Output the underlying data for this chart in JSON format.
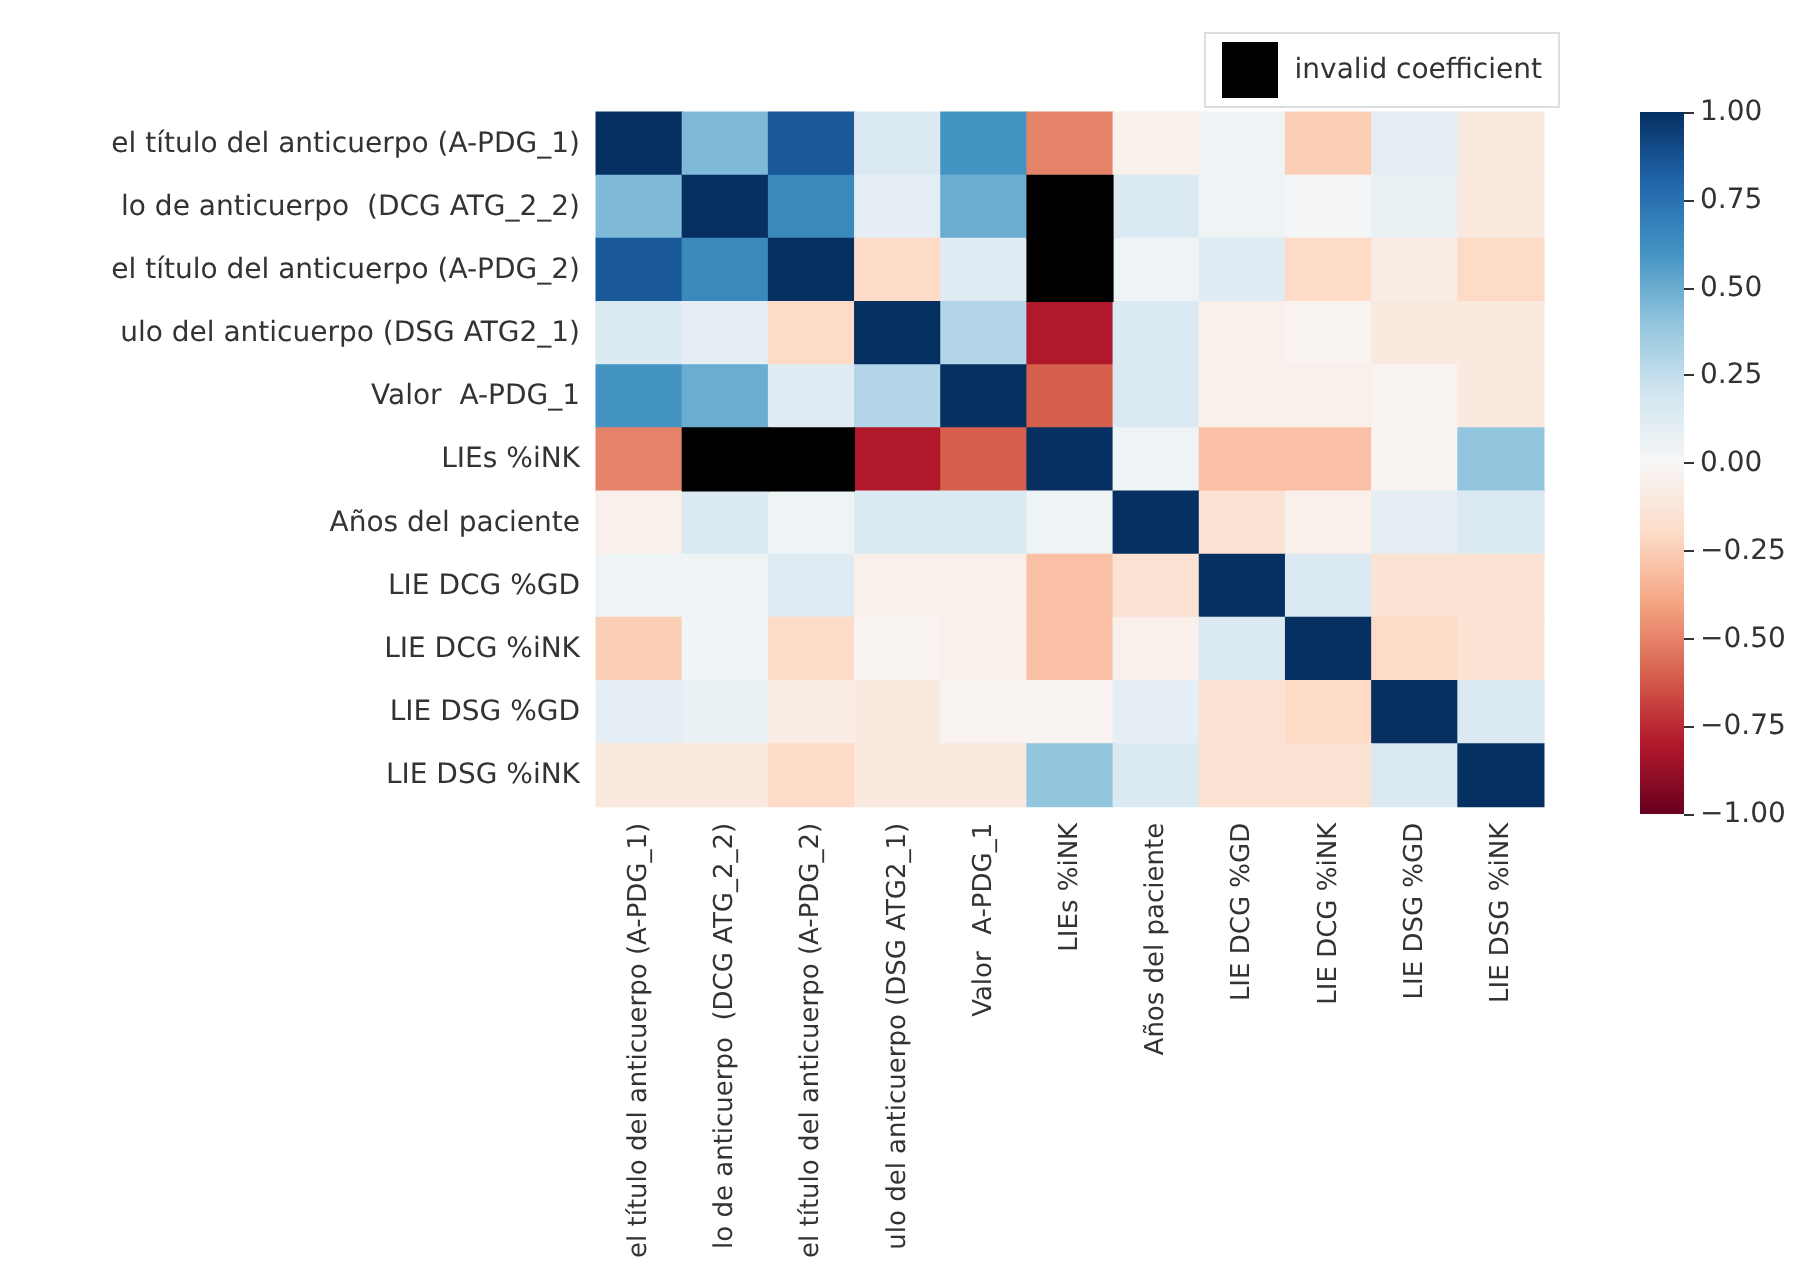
{
  "chart_data": {
    "type": "heatmap",
    "categories": [
      "el título del anticuerpo (A-PDG_1)",
      "lo de anticuerpo  (DCG ATG_2_2)",
      "el título del anticuerpo (A-PDG_2)",
      "ulo del anticuerpo (DSG ATG2_1)",
      "Valor  A-PDG_1",
      "LIEs %iNK",
      "Años del paciente",
      "LIE DCG %GD",
      "LIE DCG %iNK",
      "LIE DSG %GD",
      "LIE DSG %iNK"
    ],
    "y_categories": [
      "el título del anticuerpo (A-PDG_1)",
      "lo de anticuerpo  (DCG ATG_2_2)",
      "el título del anticuerpo (A-PDG_2)",
      "ulo del anticuerpo (DSG ATG2_1)",
      "Valor  A-PDG_1",
      "LIEs %iNK",
      "Años del paciente",
      "LIE DCG %GD",
      "LIE DCG %iNK",
      "LIE DSG %GD",
      "LIE DSG %iNK"
    ],
    "cells": [
      [
        1,
        0.45,
        0.85,
        0.15,
        0.6,
        -0.5,
        -0.05,
        0.05,
        -0.25,
        0.1,
        -0.1
      ],
      [
        0.45,
        1,
        0.65,
        0.1,
        0.5,
        null,
        0.15,
        0.05,
        0.02,
        0.07,
        -0.1
      ],
      [
        0.85,
        0.65,
        1,
        -0.2,
        0.12,
        null,
        0.05,
        0.12,
        -0.2,
        -0.08,
        -0.2
      ],
      [
        0.15,
        0.1,
        -0.2,
        1,
        0.3,
        -0.8,
        0.15,
        -0.05,
        -0.03,
        -0.1,
        -0.1
      ],
      [
        0.6,
        0.5,
        0.12,
        0.3,
        1,
        -0.6,
        0.15,
        -0.05,
        -0.05,
        -0.03,
        -0.1
      ],
      [
        -0.5,
        null,
        null,
        -0.8,
        -0.6,
        1,
        0.05,
        -0.3,
        -0.3,
        -0.03,
        0.4
      ],
      [
        -0.05,
        0.15,
        0.05,
        0.15,
        0.15,
        0.05,
        1,
        -0.15,
        -0.05,
        0.1,
        0.15
      ],
      [
        0.05,
        0.05,
        0.12,
        -0.05,
        -0.05,
        -0.3,
        -0.15,
        1,
        0.15,
        -0.15,
        -0.15
      ],
      [
        -0.25,
        0.03,
        -0.2,
        -0.03,
        -0.05,
        -0.3,
        -0.05,
        0.15,
        1,
        -0.2,
        -0.15
      ],
      [
        0.1,
        0.07,
        -0.08,
        -0.1,
        -0.03,
        -0.03,
        0.1,
        -0.15,
        -0.2,
        1,
        0.15
      ],
      [
        -0.1,
        -0.1,
        -0.2,
        -0.1,
        -0.1,
        0.4,
        0.15,
        -0.15,
        -0.15,
        0.15,
        1
      ]
    ],
    "annotations": [
      "invalid coefficient"
    ],
    "clim": [
      -1,
      1
    ],
    "cticks": [
      {
        "value": -1,
        "label": "−1.00"
      },
      {
        "value": -0.75,
        "label": "−0.75"
      },
      {
        "value": -0.5,
        "label": "−0.50"
      },
      {
        "value": -0.25,
        "label": "−0.25"
      },
      {
        "value": 0,
        "label": "0.00"
      },
      {
        "value": 0.25,
        "label": "0.25"
      },
      {
        "value": 0.5,
        "label": "0.50"
      },
      {
        "value": 0.75,
        "label": "0.75"
      },
      {
        "value": 1,
        "label": "1.00"
      }
    ]
  }
}
